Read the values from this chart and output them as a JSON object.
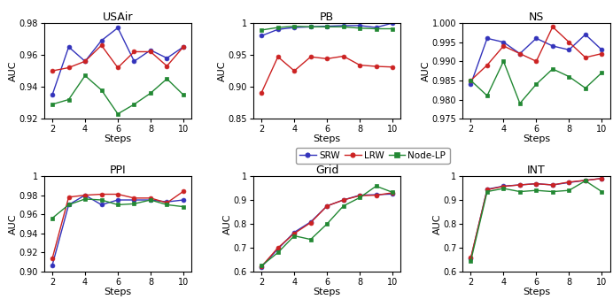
{
  "steps": [
    2,
    3,
    4,
    5,
    6,
    7,
    8,
    9,
    10
  ],
  "USAir": {
    "title": "USAir",
    "ylim": [
      0.92,
      0.98
    ],
    "yticks": [
      0.92,
      0.94,
      0.96,
      0.98
    ],
    "SRW": [
      0.935,
      0.965,
      0.956,
      0.969,
      0.977,
      0.956,
      0.963,
      0.958,
      0.965
    ],
    "LRW": [
      0.95,
      0.952,
      0.956,
      0.966,
      0.952,
      0.962,
      0.962,
      0.953,
      0.965
    ],
    "NodeLP": [
      0.929,
      0.932,
      0.947,
      0.938,
      0.923,
      0.929,
      0.936,
      0.945,
      0.935
    ]
  },
  "PB": {
    "title": "PB",
    "ylim": [
      0.85,
      1.0
    ],
    "yticks": [
      0.85,
      0.9,
      0.95,
      1.0
    ],
    "SRW": [
      0.98,
      0.99,
      0.993,
      0.994,
      0.995,
      0.996,
      0.996,
      0.993,
      1.0
    ],
    "LRW": [
      0.891,
      0.947,
      0.925,
      0.947,
      0.944,
      0.948,
      0.934,
      0.932,
      0.931
    ],
    "NodeLP": [
      0.989,
      0.993,
      0.995,
      0.994,
      0.994,
      0.994,
      0.992,
      0.991,
      0.991
    ]
  },
  "NS": {
    "title": "NS",
    "ylim": [
      0.975,
      1.0
    ],
    "yticks": [
      0.975,
      0.98,
      0.985,
      0.99,
      0.995,
      1.0
    ],
    "SRW": [
      0.984,
      0.996,
      0.995,
      0.992,
      0.996,
      0.994,
      0.993,
      0.997,
      0.993
    ],
    "LRW": [
      0.985,
      0.989,
      0.994,
      0.992,
      0.99,
      0.999,
      0.995,
      0.991,
      0.992
    ],
    "NodeLP": [
      0.985,
      0.981,
      0.99,
      0.979,
      0.984,
      0.988,
      0.986,
      0.983,
      0.987
    ]
  },
  "PPI": {
    "title": "PPI",
    "ylim": [
      0.9,
      1.0
    ],
    "yticks": [
      0.9,
      0.92,
      0.94,
      0.96,
      0.98,
      1.0
    ],
    "SRW": [
      0.907,
      0.97,
      0.98,
      0.97,
      0.975,
      0.975,
      0.975,
      0.973,
      0.975
    ],
    "LRW": [
      0.914,
      0.978,
      0.98,
      0.981,
      0.981,
      0.977,
      0.977,
      0.972,
      0.984
    ],
    "NodeLP": [
      0.956,
      0.97,
      0.976,
      0.975,
      0.97,
      0.971,
      0.975,
      0.97,
      0.968
    ]
  },
  "Grid": {
    "title": "Grid",
    "ylim": [
      0.6,
      1.0
    ],
    "yticks": [
      0.6,
      0.7,
      0.8,
      0.9,
      1.0
    ],
    "SRW": [
      0.62,
      0.695,
      0.765,
      0.808,
      0.875,
      0.9,
      0.92,
      0.922,
      0.925
    ],
    "LRW": [
      0.622,
      0.7,
      0.76,
      0.805,
      0.875,
      0.9,
      0.918,
      0.92,
      0.93
    ],
    "NodeLP": [
      0.625,
      0.68,
      0.75,
      0.735,
      0.8,
      0.875,
      0.91,
      0.958,
      0.932
    ]
  },
  "INT": {
    "title": "INT",
    "ylim": [
      0.6,
      1.0
    ],
    "yticks": [
      0.6,
      0.7,
      0.8,
      0.9,
      1.0
    ],
    "SRW": [
      0.655,
      0.945,
      0.958,
      0.963,
      0.968,
      0.963,
      0.973,
      0.982,
      0.99
    ],
    "LRW": [
      0.658,
      0.943,
      0.957,
      0.963,
      0.968,
      0.963,
      0.975,
      0.982,
      0.99
    ],
    "NodeLP": [
      0.645,
      0.935,
      0.948,
      0.935,
      0.94,
      0.935,
      0.94,
      0.98,
      0.935
    ]
  },
  "colors": {
    "SRW": "#3333bb",
    "LRW": "#cc2222",
    "NodeLP": "#228833"
  },
  "legend_labels": [
    "SRW",
    "LRW",
    "Node-LP"
  ],
  "subplot_order": [
    "USAir",
    "PB",
    "NS",
    "PPI",
    "Grid",
    "INT"
  ]
}
